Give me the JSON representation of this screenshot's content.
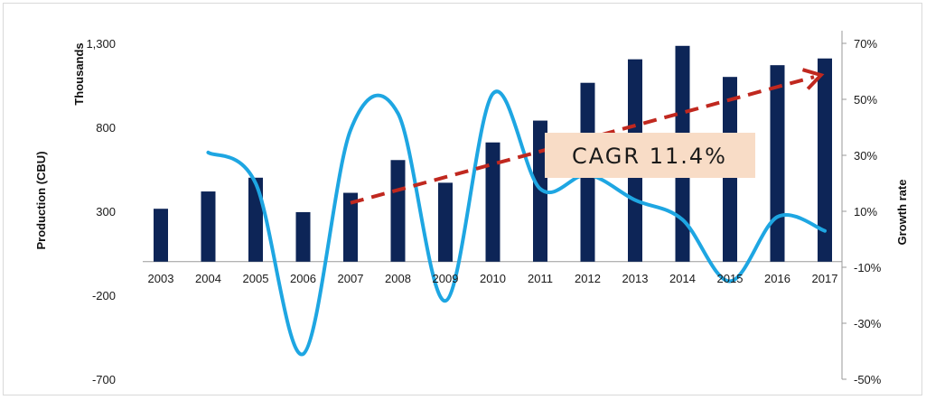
{
  "chart_data": {
    "type": "bar",
    "categories": [
      "2003",
      "2004",
      "2005",
      "2006",
      "2007",
      "2008",
      "2009",
      "2010",
      "2011",
      "2012",
      "2013",
      "2014",
      "2015",
      "2016",
      "2017"
    ],
    "series": [
      {
        "name": "",
        "kind": "bar",
        "axis": "left",
        "values": [
          315,
          418,
          500,
          295,
          410,
          605,
          470,
          710,
          840,
          1065,
          1205,
          1285,
          1100,
          1170,
          1210
        ],
        "color": "#0d2557"
      },
      {
        "name": "",
        "kind": "line",
        "axis": "right",
        "values": [
          null,
          0.31,
          0.2,
          -0.41,
          0.39,
          0.45,
          -0.22,
          0.52,
          0.18,
          0.23,
          0.14,
          0.07,
          -0.15,
          0.08,
          0.03
        ],
        "color": "#1ea6e2"
      }
    ],
    "y_left": {
      "ticks": [
        1300,
        800,
        300,
        -200,
        -700
      ],
      "tick_labels": [
        "1,300",
        "800",
        "300",
        "-200",
        "-700"
      ],
      "range": [
        -700,
        1300
      ],
      "label": "Production (CBU)",
      "unit_label": "Thousands"
    },
    "y_right": {
      "ticks": [
        0.7,
        0.5,
        0.3,
        0.1,
        -0.1,
        -0.3,
        -0.5
      ],
      "tick_labels": [
        "70%",
        "50%",
        "30%",
        "10%",
        "-10%",
        "-30%",
        "-50%"
      ],
      "range": [
        -0.5,
        0.7
      ],
      "label": "Growth rate"
    },
    "trend_arrow": {
      "from_category": "2007",
      "to_category": "2017",
      "from_value": 0.13,
      "to_value": 0.58,
      "color": "#c0281f"
    },
    "annotation": {
      "text": "CAGR 11.4%",
      "background": "#f8dcc6"
    },
    "colors": {
      "bar": "#0d2557",
      "line": "#1ea6e2",
      "arrow": "#c0281f"
    }
  }
}
